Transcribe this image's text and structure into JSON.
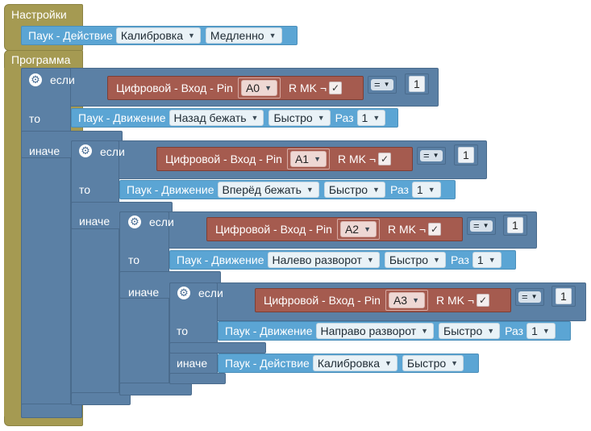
{
  "settings": {
    "header": "Настройки",
    "action": {
      "label": "Паук - Действие",
      "mode": "Калибровка",
      "speed": "Медленно"
    }
  },
  "program": {
    "header": "Программа"
  },
  "keywords": {
    "if": "если",
    "then": "то",
    "else": "иначе"
  },
  "conditions": [
    {
      "label": "Цифровой - Вход - Pin",
      "pin": "A0",
      "rmk": "R MK ¬",
      "checked": "✓",
      "op": "=",
      "value": "1"
    },
    {
      "label": "Цифровой - Вход - Pin",
      "pin": "A1",
      "rmk": "R MK ¬",
      "checked": "✓",
      "op": "=",
      "value": "1"
    },
    {
      "label": "Цифровой - Вход - Pin",
      "pin": "A2",
      "rmk": "R MK ¬",
      "checked": "✓",
      "op": "=",
      "value": "1"
    },
    {
      "label": "Цифровой - Вход - Pin",
      "pin": "A3",
      "rmk": "R MK ¬",
      "checked": "✓",
      "op": "=",
      "value": "1"
    }
  ],
  "moves": [
    {
      "label": "Паук - Движение",
      "action": "Назад бежать",
      "speed": "Быстро",
      "times_label": "Раз",
      "times": "1"
    },
    {
      "label": "Паук - Движение",
      "action": "Вперёд бежать",
      "speed": "Быстро",
      "times_label": "Раз",
      "times": "1"
    },
    {
      "label": "Паук - Движение",
      "action": "Налево разворот",
      "speed": "Быстро",
      "times_label": "Раз",
      "times": "1"
    },
    {
      "label": "Паук - Движение",
      "action": "Направо разворот",
      "speed": "Быстро",
      "times_label": "Раз",
      "times": "1"
    }
  ],
  "final_action": {
    "label": "Паук - Действие",
    "mode": "Калибровка",
    "speed": "Быстро"
  },
  "colors": {
    "event": "#a59a52",
    "logic": "#5b80a5",
    "spider": "#5ba5d4",
    "input": "#a55b4f"
  },
  "icons": {
    "gear": "gear-icon",
    "dropdown": "dropdown-arrow-icon",
    "checkbox": "checkbox-check-icon"
  }
}
